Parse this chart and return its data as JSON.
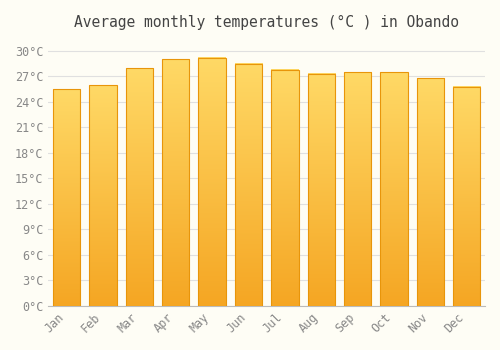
{
  "title": "Average monthly temperatures (°C ) in Obando",
  "months": [
    "Jan",
    "Feb",
    "Mar",
    "Apr",
    "May",
    "Jun",
    "Jul",
    "Aug",
    "Sep",
    "Oct",
    "Nov",
    "Dec"
  ],
  "values": [
    25.5,
    26.0,
    28.0,
    29.0,
    29.2,
    28.5,
    27.8,
    27.3,
    27.5,
    27.5,
    26.8,
    25.8
  ],
  "bar_color_bottom": "#F5A623",
  "bar_color_top": "#FFD966",
  "bar_edge_color": "#E8950A",
  "background_color": "#FEFDF5",
  "grid_color": "#E0E0E0",
  "yticks": [
    0,
    3,
    6,
    9,
    12,
    15,
    18,
    21,
    24,
    27,
    30
  ],
  "ylim": [
    0,
    31.5
  ],
  "title_fontsize": 10.5,
  "tick_fontsize": 8.5,
  "bar_width": 0.75
}
